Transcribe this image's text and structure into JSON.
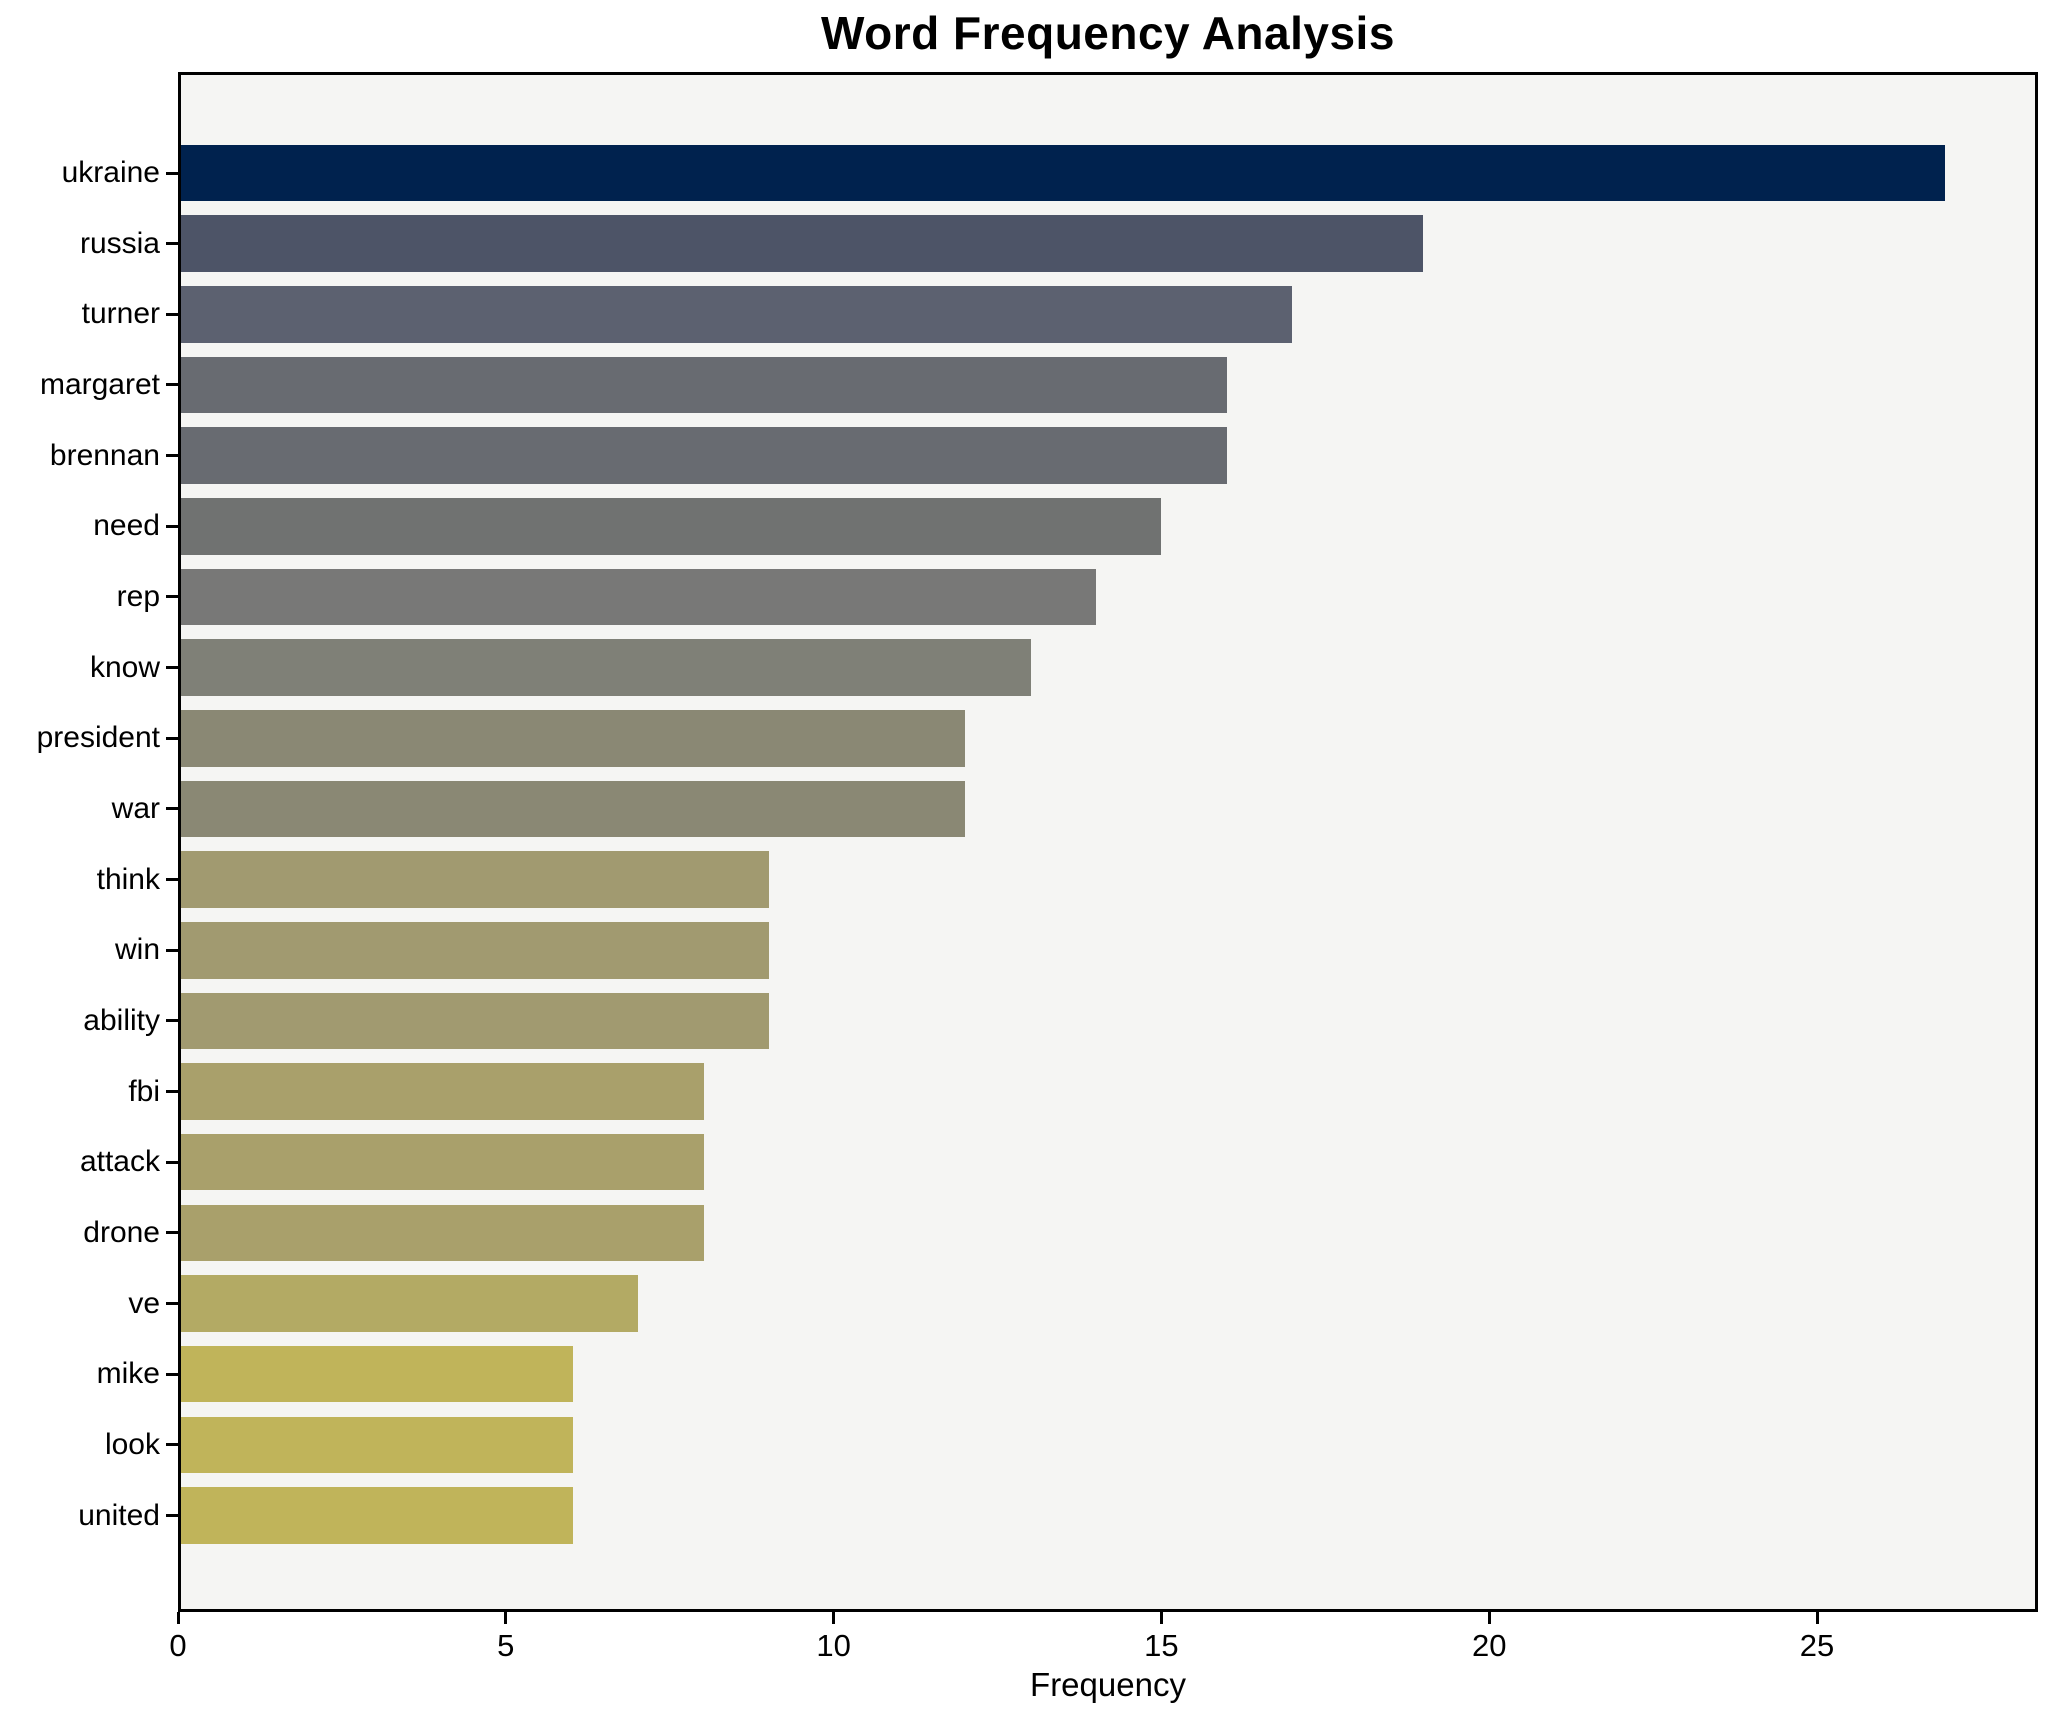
{
  "title": "Word Frequency Analysis",
  "xlabel": "Frequency",
  "chart_data": {
    "type": "bar",
    "orientation": "horizontal",
    "title": "Word Frequency Analysis",
    "xlabel": "Frequency",
    "ylabel": "",
    "categories": [
      "ukraine",
      "russia",
      "turner",
      "margaret",
      "brennan",
      "need",
      "rep",
      "know",
      "president",
      "war",
      "think",
      "win",
      "ability",
      "fbi",
      "attack",
      "drone",
      "ve",
      "mike",
      "look",
      "united"
    ],
    "values": [
      27,
      19,
      17,
      16,
      16,
      15,
      14,
      13,
      12,
      12,
      9,
      9,
      9,
      8,
      8,
      8,
      7,
      6,
      6,
      6
    ],
    "bar_colors": [
      "#00224e",
      "#4d5467",
      "#5c6170",
      "#686b71",
      "#686b71",
      "#707271",
      "#787877",
      "#7f8077",
      "#8a8874",
      "#8a8874",
      "#a19a70",
      "#a19a70",
      "#a19a70",
      "#a9a06b",
      "#a9a06b",
      "#a9a06b",
      "#b3aa64",
      "#c0b45a",
      "#c0b45a",
      "#c0b45a"
    ],
    "x_ticks": [
      0,
      5,
      10,
      15,
      20,
      25
    ],
    "xlim": [
      0,
      28.37
    ],
    "grid": false,
    "legend": "none",
    "plot_background": "#f5f5f3",
    "spine_color": "#000000",
    "text_color": "#000000"
  }
}
